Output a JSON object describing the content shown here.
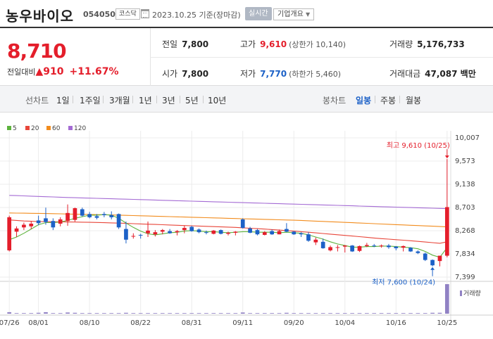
{
  "header": {
    "stock_name": "농우바이오",
    "stock_code": "054050",
    "market": "코스닥",
    "basis_date": "2023.10.25 기준(장마감)",
    "realtime_label": "실시간",
    "company_overview_label": "기업개요"
  },
  "summary": {
    "current_price": "8,710",
    "change_label": "전일대비",
    "change_amount": "910",
    "change_percent": "+11.67%",
    "prev_close_label": "전일",
    "prev_close": "7,800",
    "high_label": "고가",
    "high": "9,610",
    "upper_limit": "(상한가 10,140)",
    "volume_label": "거래량",
    "volume": "5,176,733",
    "open_label": "시가",
    "open": "7,800",
    "low_label": "저가",
    "low": "7,770",
    "lower_limit": "(하한가 5,460)",
    "trade_value_label": "거래대금",
    "trade_value": "47,087 백만"
  },
  "period_bar": {
    "line_chart_label": "선차트",
    "line_periods": [
      "1일",
      "1주일",
      "3개월",
      "1년",
      "3년",
      "5년",
      "10년"
    ],
    "candle_chart_label": "봉차트",
    "candle_periods": [
      "일봉",
      "주봉",
      "월봉"
    ],
    "active_candle_period": "일봉"
  },
  "colors": {
    "up": "#e41e2b",
    "down": "#1c61c7",
    "ma5": "#5db33d",
    "ma20": "#e8463a",
    "ma60": "#f28c1d",
    "ma120": "#a46bd4",
    "volume": "#9182c4",
    "active": "#1c61c7"
  },
  "chart_data": {
    "type": "candlestick",
    "legend": [
      {
        "name": "5",
        "color": "#5db33d"
      },
      {
        "name": "20",
        "color": "#e8463a"
      },
      {
        "name": "60",
        "color": "#f28c1d"
      },
      {
        "name": "120",
        "color": "#a46bd4"
      }
    ],
    "y_ticks": [
      "10,007",
      "9,573",
      "9,138",
      "8,703",
      "8,268",
      "7,834",
      "7,399"
    ],
    "ylim": [
      7399,
      10007
    ],
    "x_ticks": [
      "07/26",
      "08/01",
      "08/10",
      "08/22",
      "08/31",
      "09/11",
      "09/20",
      "10/04",
      "10/16",
      "10/25"
    ],
    "x_tick_index": [
      0,
      4,
      11,
      18,
      25,
      32,
      39,
      46,
      53,
      60
    ],
    "candles": [
      {
        "o": 7900,
        "h": 8550,
        "l": 7880,
        "c": 8520
      },
      {
        "o": 8250,
        "h": 8350,
        "l": 8150,
        "c": 8310
      },
      {
        "o": 8330,
        "h": 8420,
        "l": 8280,
        "c": 8380
      },
      {
        "o": 8350,
        "h": 8450,
        "l": 8300,
        "c": 8400
      },
      {
        "o": 8460,
        "h": 8550,
        "l": 8370,
        "c": 8410
      },
      {
        "o": 8500,
        "h": 8700,
        "l": 8380,
        "c": 8430
      },
      {
        "o": 8450,
        "h": 8500,
        "l": 8280,
        "c": 8330
      },
      {
        "o": 8400,
        "h": 8520,
        "l": 8350,
        "c": 8480
      },
      {
        "o": 8450,
        "h": 8760,
        "l": 8360,
        "c": 8600
      },
      {
        "o": 8470,
        "h": 8700,
        "l": 8440,
        "c": 8690
      },
      {
        "o": 8670,
        "h": 8700,
        "l": 8530,
        "c": 8550
      },
      {
        "o": 8580,
        "h": 8620,
        "l": 8500,
        "c": 8520
      },
      {
        "o": 8540,
        "h": 8580,
        "l": 8480,
        "c": 8510
      },
      {
        "o": 8580,
        "h": 8620,
        "l": 8520,
        "c": 8560
      },
      {
        "o": 8560,
        "h": 8630,
        "l": 8480,
        "c": 8520
      },
      {
        "o": 8580,
        "h": 8590,
        "l": 8300,
        "c": 8330
      },
      {
        "o": 8300,
        "h": 8440,
        "l": 8030,
        "c": 8100
      },
      {
        "o": 8160,
        "h": 8220,
        "l": 8120,
        "c": 8170
      },
      {
        "o": 8190,
        "h": 8210,
        "l": 8120,
        "c": 8180
      },
      {
        "o": 8220,
        "h": 8440,
        "l": 8150,
        "c": 8270
      },
      {
        "o": 8200,
        "h": 8280,
        "l": 8160,
        "c": 8240
      },
      {
        "o": 8250,
        "h": 8300,
        "l": 8200,
        "c": 8280
      },
      {
        "o": 8260,
        "h": 8300,
        "l": 8210,
        "c": 8220
      },
      {
        "o": 8240,
        "h": 8280,
        "l": 8180,
        "c": 8260
      },
      {
        "o": 8280,
        "h": 8360,
        "l": 8220,
        "c": 8320
      },
      {
        "o": 8340,
        "h": 8360,
        "l": 8250,
        "c": 8260
      },
      {
        "o": 8290,
        "h": 8310,
        "l": 8220,
        "c": 8240
      },
      {
        "o": 8240,
        "h": 8270,
        "l": 8200,
        "c": 8230
      },
      {
        "o": 8210,
        "h": 8280,
        "l": 8200,
        "c": 8270
      },
      {
        "o": 8280,
        "h": 8290,
        "l": 8200,
        "c": 8210
      },
      {
        "o": 8210,
        "h": 8250,
        "l": 8180,
        "c": 8230
      },
      {
        "o": 8230,
        "h": 8260,
        "l": 8180,
        "c": 8250
      },
      {
        "o": 8480,
        "h": 8500,
        "l": 8310,
        "c": 8320
      },
      {
        "o": 8310,
        "h": 8340,
        "l": 8220,
        "c": 8230
      },
      {
        "o": 8280,
        "h": 8300,
        "l": 8180,
        "c": 8200
      },
      {
        "o": 8190,
        "h": 8260,
        "l": 8180,
        "c": 8240
      },
      {
        "o": 8260,
        "h": 8290,
        "l": 8190,
        "c": 8200
      },
      {
        "o": 8200,
        "h": 8290,
        "l": 8200,
        "c": 8260
      },
      {
        "o": 8300,
        "h": 8410,
        "l": 8240,
        "c": 8250
      },
      {
        "o": 8250,
        "h": 8260,
        "l": 8190,
        "c": 8200
      },
      {
        "o": 8220,
        "h": 8240,
        "l": 8150,
        "c": 8200
      },
      {
        "o": 8200,
        "h": 8240,
        "l": 8060,
        "c": 8080
      },
      {
        "o": 8050,
        "h": 8140,
        "l": 8000,
        "c": 8100
      },
      {
        "o": 8060,
        "h": 8120,
        "l": 7930,
        "c": 7940
      },
      {
        "o": 7900,
        "h": 7990,
        "l": 7880,
        "c": 7960
      },
      {
        "o": 7950,
        "h": 8000,
        "l": 7880,
        "c": 7960
      },
      {
        "o": 7970,
        "h": 8000,
        "l": 7860,
        "c": 7990
      },
      {
        "o": 7990,
        "h": 8000,
        "l": 7870,
        "c": 7880
      },
      {
        "o": 7890,
        "h": 7990,
        "l": 7870,
        "c": 7980
      },
      {
        "o": 7980,
        "h": 8040,
        "l": 7960,
        "c": 8000
      },
      {
        "o": 7990,
        "h": 8020,
        "l": 7960,
        "c": 7980
      },
      {
        "o": 7980,
        "h": 8010,
        "l": 7950,
        "c": 7990
      },
      {
        "o": 7990,
        "h": 8020,
        "l": 7930,
        "c": 7960
      },
      {
        "o": 7970,
        "h": 7980,
        "l": 7900,
        "c": 7940
      },
      {
        "o": 7950,
        "h": 7990,
        "l": 7880,
        "c": 7980
      },
      {
        "o": 7950,
        "h": 7960,
        "l": 7870,
        "c": 7880
      },
      {
        "o": 7880,
        "h": 7900,
        "l": 7830,
        "c": 7850
      },
      {
        "o": 7840,
        "h": 7860,
        "l": 7700,
        "c": 7720
      },
      {
        "o": 7720,
        "h": 7730,
        "l": 7600,
        "c": 7620
      },
      {
        "o": 7700,
        "h": 7800,
        "l": 7600,
        "c": 7800
      },
      {
        "o": 7800,
        "h": 9610,
        "l": 7770,
        "c": 8710
      }
    ],
    "ma5": [
      8100,
      8150,
      8220,
      8300,
      8380,
      8420,
      8420,
      8430,
      8460,
      8500,
      8530,
      8560,
      8560,
      8570,
      8560,
      8500,
      8410,
      8330,
      8260,
      8210,
      8190,
      8210,
      8230,
      8240,
      8260,
      8270,
      8260,
      8250,
      8250,
      8240,
      8230,
      8240,
      8250,
      8250,
      8240,
      8240,
      8240,
      8230,
      8240,
      8230,
      8220,
      8190,
      8150,
      8110,
      8060,
      8020,
      7990,
      7960,
      7960,
      7970,
      7970,
      7980,
      7980,
      7970,
      7960,
      7950,
      7930,
      7880,
      7810,
      7770,
      7950
    ],
    "ma20": [
      8470,
      8460,
      8450,
      8445,
      8440,
      8438,
      8436,
      8434,
      8432,
      8430,
      8428,
      8425,
      8422,
      8418,
      8414,
      8410,
      8405,
      8400,
      8395,
      8390,
      8385,
      8380,
      8375,
      8370,
      8365,
      8360,
      8355,
      8350,
      8345,
      8340,
      8335,
      8330,
      8322,
      8314,
      8306,
      8298,
      8290,
      8280,
      8270,
      8260,
      8250,
      8240,
      8228,
      8216,
      8204,
      8192,
      8180,
      8168,
      8156,
      8144,
      8132,
      8120,
      8110,
      8100,
      8090,
      8080,
      8068,
      8056,
      8044,
      8032,
      8060
    ],
    "ma60": [
      8600,
      8598,
      8596,
      8594,
      8592,
      8590,
      8587,
      8584,
      8581,
      8578,
      8575,
      8572,
      8569,
      8566,
      8563,
      8560,
      8556,
      8552,
      8548,
      8544,
      8540,
      8536,
      8532,
      8528,
      8524,
      8520,
      8516,
      8512,
      8508,
      8504,
      8500,
      8496,
      8492,
      8488,
      8484,
      8480,
      8476,
      8472,
      8468,
      8464,
      8460,
      8454,
      8448,
      8442,
      8436,
      8430,
      8424,
      8418,
      8412,
      8406,
      8400,
      8394,
      8388,
      8382,
      8376,
      8370,
      8364,
      8358,
      8352,
      8346,
      8340
    ],
    "ma120": [
      8930,
      8925,
      8920,
      8915,
      8910,
      8905,
      8900,
      8895,
      8890,
      8886,
      8882,
      8878,
      8874,
      8870,
      8866,
      8862,
      8858,
      8854,
      8850,
      8846,
      8842,
      8838,
      8834,
      8830,
      8826,
      8822,
      8818,
      8814,
      8810,
      8806,
      8802,
      8798,
      8794,
      8790,
      8786,
      8782,
      8778,
      8774,
      8770,
      8766,
      8762,
      8758,
      8754,
      8750,
      8746,
      8742,
      8738,
      8734,
      8730,
      8726,
      8722,
      8718,
      8714,
      8710,
      8706,
      8702,
      8698,
      8694,
      8690,
      8686,
      8682
    ],
    "volume": [
      0.05,
      0.02,
      0.02,
      0.02,
      0.03,
      0.05,
      0.02,
      0.02,
      0.04,
      0.03,
      0.02,
      0.02,
      0.02,
      0.02,
      0.02,
      0.02,
      0.03,
      0.02,
      0.02,
      0.02,
      0.02,
      0.02,
      0.02,
      0.02,
      0.02,
      0.02,
      0.02,
      0.02,
      0.02,
      0.02,
      0.02,
      0.02,
      0.04,
      0.02,
      0.02,
      0.02,
      0.02,
      0.02,
      0.03,
      0.02,
      0.02,
      0.02,
      0.02,
      0.02,
      0.02,
      0.02,
      0.02,
      0.02,
      0.02,
      0.02,
      0.02,
      0.02,
      0.02,
      0.02,
      0.02,
      0.02,
      0.02,
      0.02,
      0.03,
      0.03,
      1.0
    ],
    "volume_label": "거래량",
    "high_annotation": "최고 9,610 (10/25)",
    "low_annotation": "최저 7,600 (10/24)",
    "grid": true
  }
}
